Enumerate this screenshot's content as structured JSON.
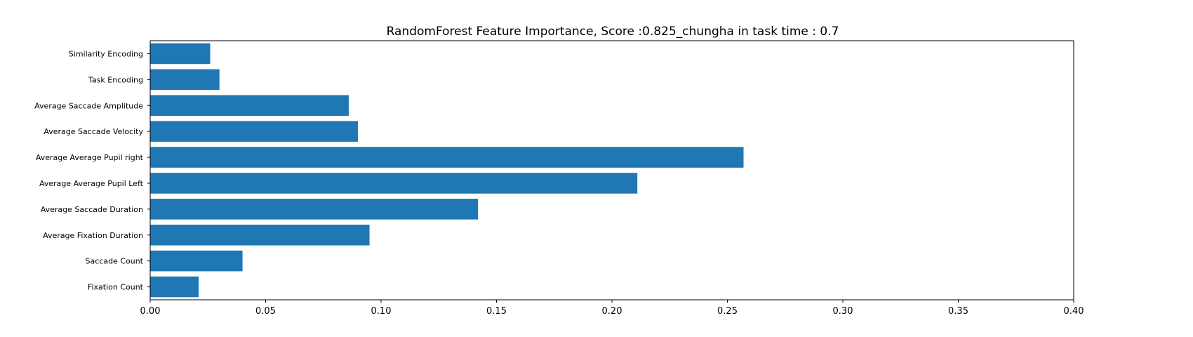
{
  "chart_data": {
    "type": "bar",
    "orientation": "horizontal",
    "title": "RandomForest Feature Importance, Score :0.825_chungha in task time : 0.7",
    "xlabel": "",
    "ylabel": "",
    "xlim": [
      0,
      0.4
    ],
    "xticks": [
      "0.00",
      "0.05",
      "0.10",
      "0.15",
      "0.20",
      "0.25",
      "0.30",
      "0.35",
      "0.40"
    ],
    "categories": [
      "Fixation Count",
      "Saccade Count",
      "Average Fixation Duration",
      "Average Saccade Duration",
      "Average Average Pupil Left",
      "Average Average Pupil right",
      "Average Saccade Velocity",
      "Average Saccade Amplitude",
      "Task Encoding",
      "Similarity Encoding"
    ],
    "values": [
      0.021,
      0.04,
      0.095,
      0.142,
      0.211,
      0.257,
      0.09,
      0.086,
      0.03,
      0.026
    ],
    "grid": false,
    "bar_color": "#1f77b4"
  }
}
